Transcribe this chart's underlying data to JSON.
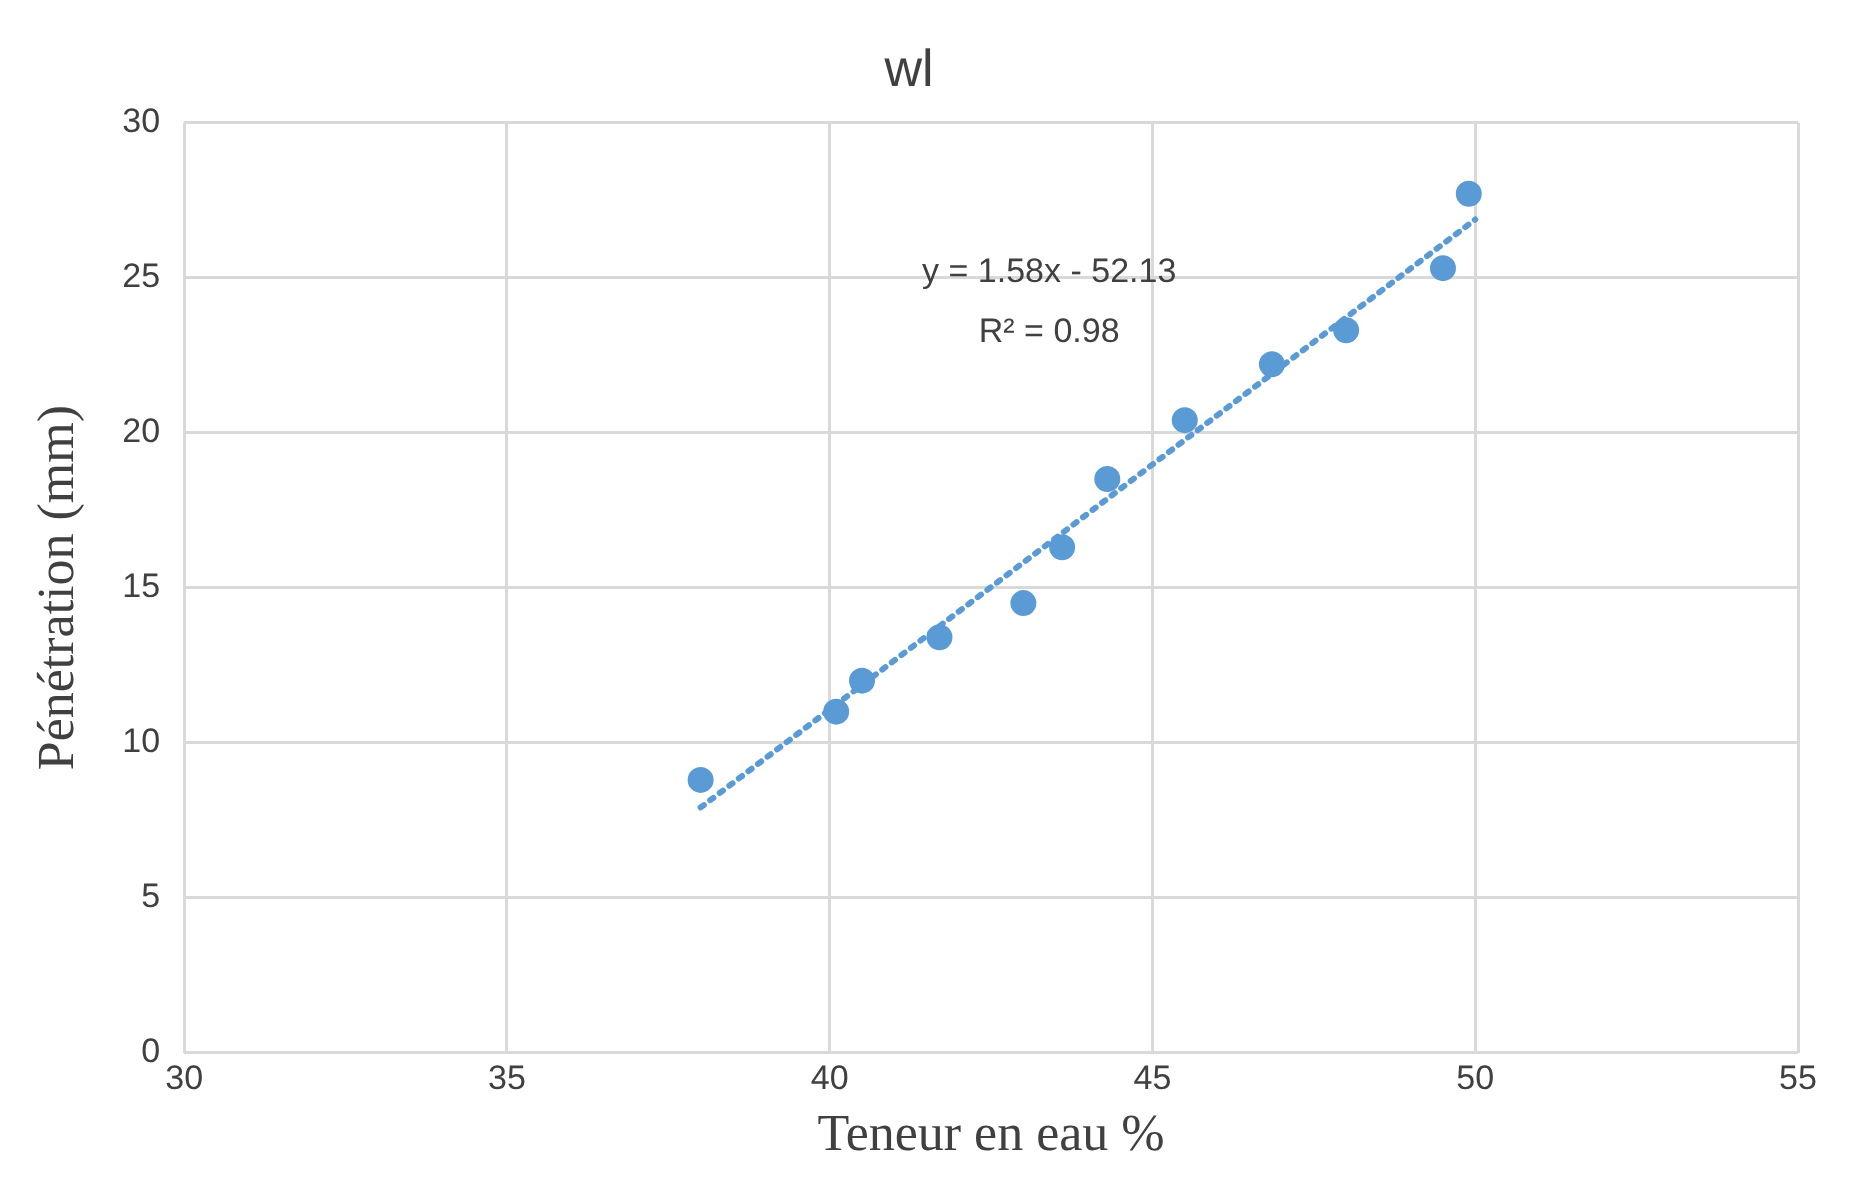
{
  "chart_data": {
    "type": "scatter",
    "title": "wl",
    "xlabel": "Teneur en eau %",
    "ylabel": "Pénétration (mm)",
    "series": [
      {
        "color": "#5b9bd5",
        "x": [
          38.0,
          40.1,
          40.5,
          41.7,
          43.0,
          43.6,
          44.3,
          45.5,
          46.85,
          48.0,
          49.5,
          49.9
        ],
        "values": [
          8.8,
          11.0,
          12.0,
          13.4,
          14.5,
          16.3,
          18.5,
          20.4,
          22.2,
          23.3,
          25.3,
          27.7
        ]
      },
      {
        "type": "line",
        "color": "#5b9bd5",
        "line_style": "dotted",
        "marker": "none",
        "x": [
          38.0,
          50.0
        ],
        "values": [
          7.91,
          26.87
        ]
      }
    ],
    "annotations": [
      "y = 1.58x - 52.13",
      "R² = 0.98"
    ],
    "xlim": [
      30,
      55
    ],
    "xticks": [
      30,
      35,
      40,
      45,
      50,
      55
    ],
    "ylim": [
      0,
      30
    ],
    "yticks": [
      0,
      5,
      10,
      15,
      20,
      25,
      30
    ],
    "grid": true,
    "legend": false,
    "marker": "circle"
  }
}
